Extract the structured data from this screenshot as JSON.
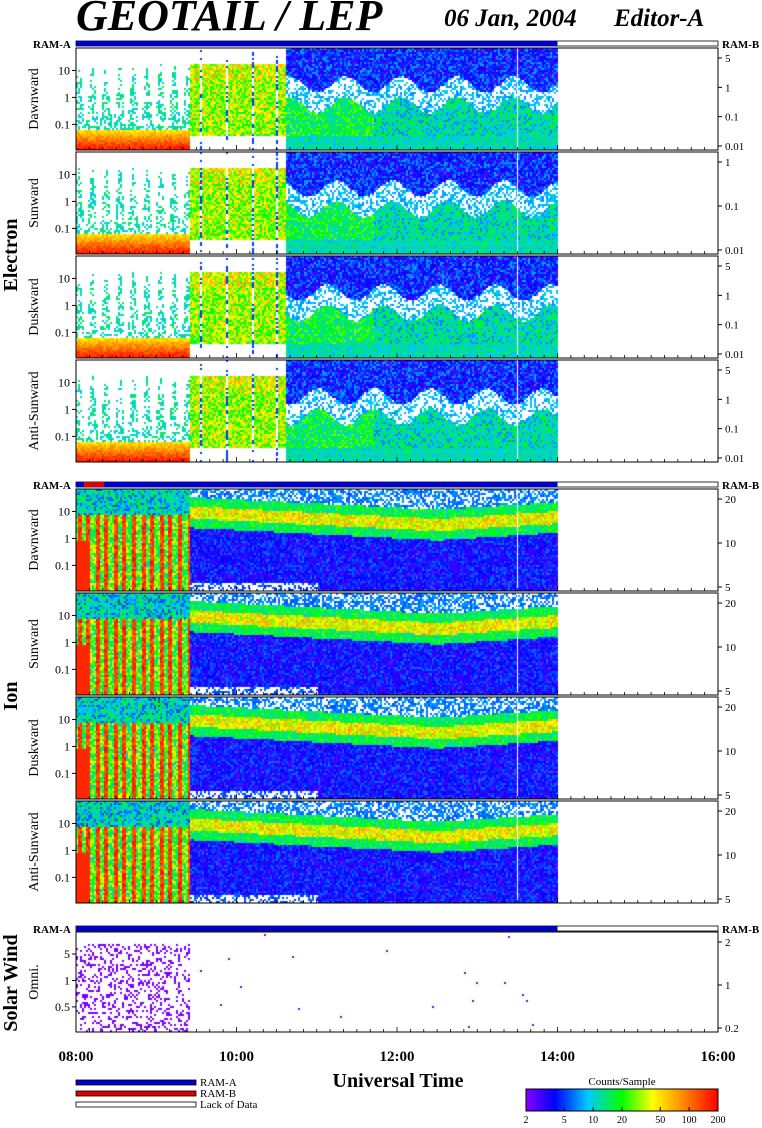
{
  "header": {
    "title": "GEOTAIL / LEP",
    "date": "06 Jan, 2004",
    "editor": "Editor-A"
  },
  "chart_data": {
    "type": "heatmap",
    "xlabel": "Universal Time",
    "x_ticks": [
      "08:00",
      "10:00",
      "12:00",
      "14:00",
      "16:00"
    ],
    "x_range_hours": [
      8,
      16
    ],
    "data_end_hour": 14,
    "groups": [
      {
        "name": "Electron",
        "ram_left": "RAM-A",
        "ram_right": "RAM-B",
        "ram_bar": [
          {
            "from": 8,
            "to": 14,
            "mode": "RAM-A"
          },
          {
            "from": 14,
            "to": 16,
            "mode": "Lack of Data"
          }
        ],
        "panels": [
          {
            "label": "Dawnward",
            "y_ticks": [
              "10",
              "1",
              "0.1"
            ],
            "right_ticks": [
              "5",
              "1",
              "0.1",
              "0.01"
            ]
          },
          {
            "label": "Sunward",
            "y_ticks": [
              "10",
              "1",
              "0.1"
            ],
            "right_ticks": [
              "1",
              "0.1",
              "0.01"
            ]
          },
          {
            "label": "Duskward",
            "y_ticks": [
              "10",
              "1",
              "0.1"
            ],
            "right_ticks": [
              "5",
              "1",
              "0.1",
              "0.01"
            ]
          },
          {
            "label": "Anti-Sunward",
            "y_ticks": [
              "10",
              "1",
              "0.1"
            ],
            "right_ticks": [
              "5",
              "1",
              "0.1",
              "0.01"
            ]
          }
        ]
      },
      {
        "name": "Ion",
        "ram_left": "RAM-A",
        "ram_right": "RAM-B",
        "ram_bar": [
          {
            "from": 8,
            "to": 8.1,
            "mode": "RAM-A"
          },
          {
            "from": 8.1,
            "to": 8.35,
            "mode": "RAM-B"
          },
          {
            "from": 8.35,
            "to": 14,
            "mode": "RAM-A"
          },
          {
            "from": 14,
            "to": 16,
            "mode": "Lack of Data"
          }
        ],
        "panels": [
          {
            "label": "Dawnward",
            "y_ticks": [
              "10",
              "1",
              "0.1"
            ],
            "right_ticks": [
              "20",
              "10",
              "5"
            ]
          },
          {
            "label": "Sunward",
            "y_ticks": [
              "10",
              "1",
              "0.1"
            ],
            "right_ticks": [
              "20",
              "10",
              "5"
            ]
          },
          {
            "label": "Duskward",
            "y_ticks": [
              "10",
              "1",
              "0.1"
            ],
            "right_ticks": [
              "20",
              "10",
              "5"
            ]
          },
          {
            "label": "Anti-Sunward",
            "y_ticks": [
              "10",
              "1",
              "0.1"
            ],
            "right_ticks": [
              "20",
              "10",
              "5"
            ]
          }
        ]
      },
      {
        "name": "Solar Wind",
        "ram_left": "RAM-A",
        "ram_right": "RAM-B",
        "ram_bar": [
          {
            "from": 8,
            "to": 14,
            "mode": "RAM-A"
          },
          {
            "from": 14,
            "to": 16,
            "mode": "Lack of Data"
          }
        ],
        "panels": [
          {
            "label": "Omni.",
            "y_ticks": [
              "5",
              "1",
              "0.5"
            ],
            "right_ticks": [
              "2",
              "1",
              "0.2"
            ]
          }
        ]
      }
    ],
    "legend": {
      "items": [
        "RAM-A",
        "RAM-B",
        "Lack of Data"
      ],
      "colors": {
        "RAM-A": "#0000cc",
        "RAM-B": "#dd0000",
        "Lack of Data": "#ffffff"
      }
    },
    "colorbar": {
      "title": "Counts/Sample",
      "ticks": [
        "2",
        "5",
        "10",
        "20",
        "50",
        "100",
        "200"
      ],
      "scale": "log",
      "range": [
        2,
        200
      ],
      "colors": [
        "#8800ff",
        "#0000ff",
        "#00c8ff",
        "#00ff00",
        "#ffff00",
        "#ff8800",
        "#ff0000"
      ]
    }
  }
}
